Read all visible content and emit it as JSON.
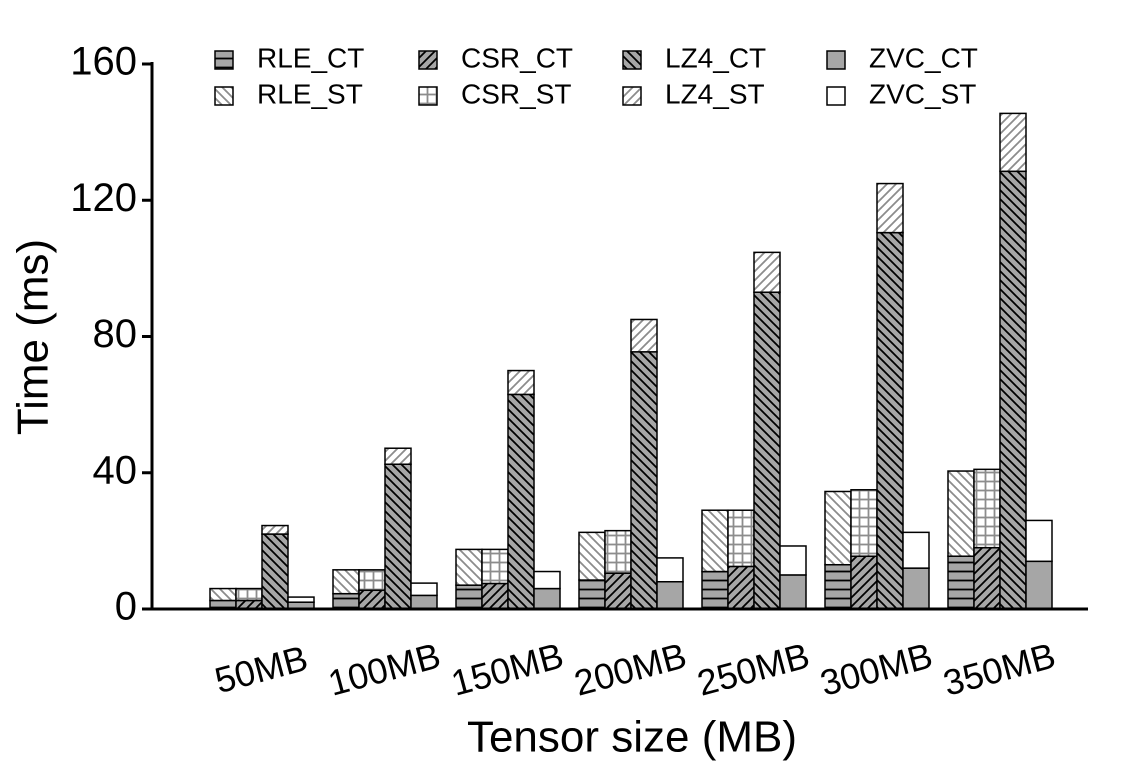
{
  "chart_data": {
    "type": "bar",
    "x_label": "Tensor size (MB)",
    "y_label": "Time (ms)",
    "categories": [
      "50MB",
      "100MB",
      "150MB",
      "200MB",
      "250MB",
      "300MB",
      "350MB"
    ],
    "series": [
      {
        "name": "RLE_CT",
        "color": "#a6a6a6",
        "pattern": "hline",
        "hatch": "#000000",
        "values": [
          2.5,
          4.5,
          7,
          8.5,
          11,
          13,
          15.5
        ]
      },
      {
        "name": "RLE_ST",
        "color": "#ffffff",
        "pattern": "bslash",
        "hatch": "#8c8c8c",
        "values": [
          3.5,
          7,
          10.5,
          14,
          18,
          21.5,
          25
        ]
      },
      {
        "name": "CSR_CT",
        "color": "#a6a6a6",
        "pattern": "slash",
        "hatch": "#000000",
        "values": [
          2.5,
          5.5,
          7.5,
          10.5,
          12.5,
          15.5,
          18
        ]
      },
      {
        "name": "CSR_ST",
        "color": "#ffffff",
        "pattern": "grid",
        "hatch": "#8c8c8c",
        "values": [
          3.5,
          6,
          10,
          12.5,
          16.5,
          19.5,
          23
        ]
      },
      {
        "name": "LZ4_CT",
        "color": "#a6a6a6",
        "pattern": "bslash",
        "hatch": "#000000",
        "values": [
          22,
          42.5,
          63,
          75.5,
          93,
          110.5,
          128.5
        ]
      },
      {
        "name": "LZ4_ST",
        "color": "#ffffff",
        "pattern": "slash",
        "hatch": "#8c8c8c",
        "values": [
          2.5,
          4.7,
          7,
          9.5,
          11.7,
          14.4,
          17
        ]
      },
      {
        "name": "ZVC_CT",
        "color": "#a6a6a6",
        "pattern": "none",
        "hatch": "#000000",
        "values": [
          2,
          4,
          6,
          8,
          10,
          12,
          14
        ]
      },
      {
        "name": "ZVC_ST",
        "color": "#ffffff",
        "pattern": "none",
        "hatch": "#000000",
        "values": [
          1.5,
          3.6,
          5,
          7,
          8.5,
          10.5,
          12
        ]
      }
    ],
    "ylim": [
      0,
      160
    ],
    "yticks": [
      0,
      40,
      80,
      120,
      160
    ],
    "grid": false,
    "legend": "top"
  }
}
